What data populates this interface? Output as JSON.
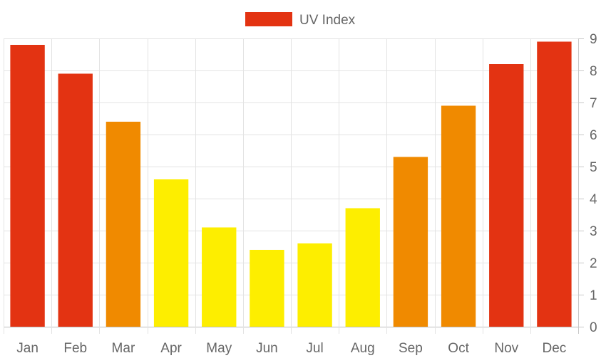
{
  "chart_data": {
    "type": "bar",
    "categories": [
      "Jan",
      "Feb",
      "Mar",
      "Apr",
      "May",
      "Jun",
      "Jul",
      "Aug",
      "Sep",
      "Oct",
      "Nov",
      "Dec"
    ],
    "series": [
      {
        "name": "UV Index",
        "values": [
          8.8,
          7.9,
          6.4,
          4.6,
          3.1,
          2.4,
          2.6,
          3.7,
          5.3,
          6.9,
          8.2,
          8.9
        ],
        "colors": [
          "#e33312",
          "#e33312",
          "#f08a00",
          "#fdee00",
          "#fdee00",
          "#fdee00",
          "#fdee00",
          "#fdee00",
          "#f08a00",
          "#f08a00",
          "#e33312",
          "#e33312"
        ]
      }
    ],
    "ylim": [
      0,
      9
    ],
    "yticks": [
      0,
      1,
      2,
      3,
      4,
      5,
      6,
      7,
      8,
      9
    ],
    "y_axis_side": "right",
    "grid": true,
    "legend_position": "top-center",
    "legend_color": "#e33312",
    "title": "",
    "xlabel": "",
    "ylabel": ""
  }
}
